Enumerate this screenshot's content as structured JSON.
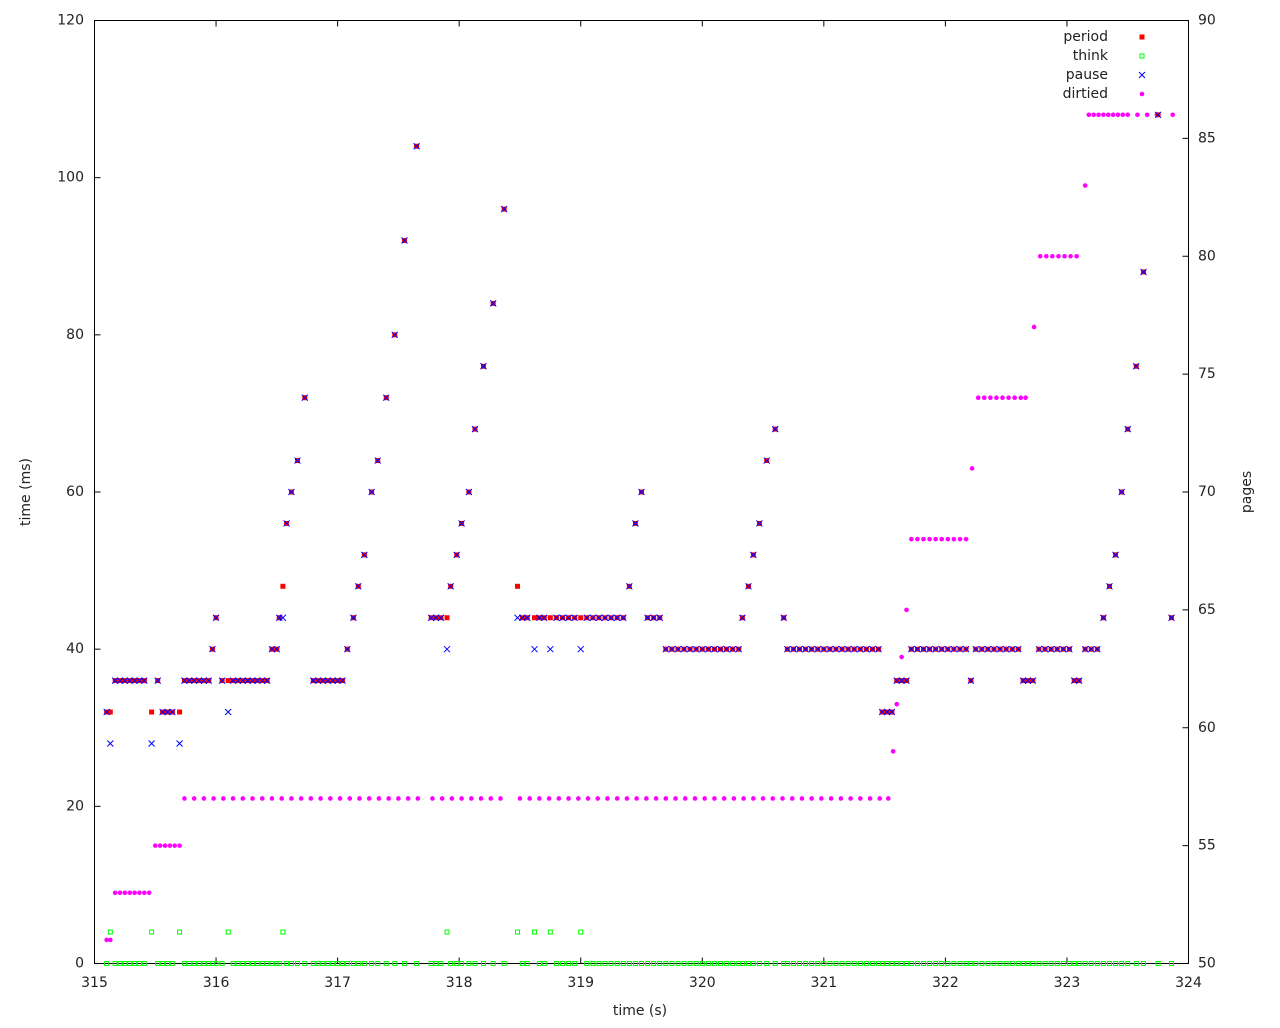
{
  "chart_data": {
    "type": "scatter",
    "xlabel": "time (s)",
    "ylabel": "time (ms)",
    "y2label": "pages",
    "xlim": [
      315,
      324
    ],
    "xticks": [
      315,
      316,
      317,
      318,
      319,
      320,
      321,
      322,
      323,
      324
    ],
    "ylim": [
      0,
      120
    ],
    "yticks": [
      0,
      20,
      40,
      60,
      80,
      100,
      120
    ],
    "y2lim": [
      50,
      90
    ],
    "y2ticks": [
      50,
      55,
      60,
      65,
      70,
      75,
      80,
      85,
      90
    ],
    "grid": false,
    "legend": "top-right",
    "x": [
      315.1,
      315.13,
      315.17,
      315.21,
      315.25,
      315.29,
      315.33,
      315.37,
      315.41,
      315.47,
      315.52,
      315.56,
      315.6,
      315.64,
      315.7,
      315.74,
      315.78,
      315.82,
      315.86,
      315.9,
      315.94,
      315.97,
      316.0,
      316.05,
      316.1,
      316.14,
      316.18,
      316.22,
      316.26,
      316.3,
      316.34,
      316.38,
      316.42,
      316.46,
      316.5,
      316.52,
      316.55,
      316.58,
      316.62,
      316.67,
      316.73,
      316.8,
      316.84,
      316.88,
      316.92,
      316.96,
      317.0,
      317.04,
      317.08,
      317.13,
      317.17,
      317.22,
      317.28,
      317.33,
      317.4,
      317.47,
      317.55,
      317.65,
      317.77,
      317.81,
      317.85,
      317.9,
      317.93,
      317.98,
      318.02,
      318.08,
      318.13,
      318.2,
      318.28,
      318.37,
      318.48,
      318.52,
      318.56,
      318.62,
      318.66,
      318.7,
      318.75,
      318.8,
      318.85,
      318.9,
      318.95,
      319.0,
      319.05,
      319.1,
      319.15,
      319.2,
      319.25,
      319.3,
      319.35,
      319.4,
      319.45,
      319.5,
      319.55,
      319.6,
      319.65,
      319.7,
      319.75,
      319.8,
      319.85,
      319.9,
      319.95,
      320.0,
      320.05,
      320.1,
      320.15,
      320.2,
      320.25,
      320.3,
      320.33,
      320.38,
      320.42,
      320.47,
      320.53,
      320.6,
      320.67,
      320.7,
      320.75,
      320.8,
      320.85,
      320.9,
      320.95,
      321.0,
      321.05,
      321.1,
      321.15,
      321.2,
      321.25,
      321.3,
      321.35,
      321.4,
      321.45,
      321.48,
      321.52,
      321.56,
      321.6,
      321.64,
      321.68,
      321.72,
      321.77,
      321.82,
      321.87,
      321.92,
      321.97,
      322.02,
      322.07,
      322.12,
      322.17,
      322.21,
      322.25,
      322.3,
      322.35,
      322.4,
      322.45,
      322.5,
      322.55,
      322.6,
      322.64,
      322.68,
      322.72,
      322.77,
      322.82,
      322.87,
      322.92,
      322.97,
      323.02,
      323.06,
      323.1,
      323.15,
      323.2,
      323.25,
      323.3,
      323.35,
      323.4,
      323.45,
      323.5,
      323.57,
      323.63,
      323.75,
      323.86
    ],
    "series": [
      {
        "name": "dirtied",
        "color": "#ff00ff",
        "marker": "circle",
        "axis": "y2",
        "x": [
          315.1,
          315.13,
          315.17,
          315.21,
          315.25,
          315.29,
          315.33,
          315.37,
          315.41,
          315.45,
          315.5,
          315.54,
          315.58,
          315.62,
          315.66,
          315.7,
          315.74,
          315.82,
          315.9,
          315.98,
          316.06,
          316.14,
          316.22,
          316.3,
          316.38,
          316.46,
          316.54,
          316.62,
          316.7,
          316.78,
          316.86,
          316.94,
          317.02,
          317.1,
          317.18,
          317.26,
          317.34,
          317.42,
          317.5,
          317.58,
          317.66,
          317.78,
          317.86,
          317.94,
          318.02,
          318.1,
          318.18,
          318.26,
          318.34,
          318.5,
          318.58,
          318.66,
          318.74,
          318.82,
          318.9,
          318.98,
          319.06,
          319.14,
          319.22,
          319.3,
          319.38,
          319.46,
          319.54,
          319.62,
          319.7,
          319.78,
          319.86,
          319.94,
          320.02,
          320.1,
          320.18,
          320.26,
          320.34,
          320.42,
          320.5,
          320.58,
          320.66,
          320.74,
          320.82,
          320.9,
          320.98,
          321.06,
          321.14,
          321.22,
          321.3,
          321.38,
          321.46,
          321.53,
          321.57,
          321.6,
          321.64,
          321.68,
          321.72,
          321.77,
          321.82,
          321.87,
          321.92,
          321.97,
          322.02,
          322.07,
          322.12,
          322.17,
          322.22,
          322.27,
          322.32,
          322.37,
          322.42,
          322.47,
          322.52,
          322.57,
          322.62,
          322.66,
          322.73,
          322.78,
          322.83,
          322.88,
          322.93,
          322.98,
          323.03,
          323.08,
          323.15,
          323.18,
          323.22,
          323.26,
          323.3,
          323.34,
          323.38,
          323.42,
          323.46,
          323.5,
          323.58,
          323.66,
          323.74,
          323.87
        ],
        "values": [
          51,
          51,
          53,
          53,
          53,
          53,
          53,
          53,
          53,
          53,
          55,
          55,
          55,
          55,
          55,
          55,
          57,
          57,
          57,
          57,
          57,
          57,
          57,
          57,
          57,
          57,
          57,
          57,
          57,
          57,
          57,
          57,
          57,
          57,
          57,
          57,
          57,
          57,
          57,
          57,
          57,
          57,
          57,
          57,
          57,
          57,
          57,
          57,
          57,
          57,
          57,
          57,
          57,
          57,
          57,
          57,
          57,
          57,
          57,
          57,
          57,
          57,
          57,
          57,
          57,
          57,
          57,
          57,
          57,
          57,
          57,
          57,
          57,
          57,
          57,
          57,
          57,
          57,
          57,
          57,
          57,
          57,
          57,
          57,
          57,
          57,
          57,
          57,
          59,
          61,
          63,
          65,
          68,
          68,
          68,
          68,
          68,
          68,
          68,
          68,
          68,
          68,
          71,
          74,
          74,
          74,
          74,
          74,
          74,
          74,
          74,
          74,
          77,
          80,
          80,
          80,
          80,
          80,
          80,
          80,
          83,
          86,
          86,
          86,
          86,
          86,
          86,
          86,
          86,
          86,
          86,
          86,
          86,
          86
        ]
      },
      {
        "name": "think",
        "color": "#00ff00",
        "marker": "open-square",
        "values": [
          0,
          4,
          0,
          0,
          0,
          0,
          0,
          0,
          0,
          4,
          0,
          0,
          0,
          0,
          4,
          0,
          0,
          0,
          0,
          0,
          0,
          0,
          0,
          0,
          4,
          0,
          0,
          0,
          0,
          0,
          0,
          0,
          0,
          0,
          0,
          0,
          4,
          0,
          0,
          0,
          0,
          0,
          0,
          0,
          0,
          0,
          0,
          0,
          0,
          0,
          0,
          0,
          0,
          0,
          0,
          0,
          0,
          0,
          0,
          0,
          0,
          4,
          0,
          0,
          0,
          0,
          0,
          0,
          0,
          0,
          4,
          0,
          0,
          4,
          0,
          0,
          4,
          0,
          0,
          0,
          0,
          4,
          0,
          0,
          0,
          0,
          0,
          0,
          0,
          0,
          0,
          0,
          0,
          0,
          0,
          0,
          0,
          0,
          0,
          0,
          0,
          0,
          0,
          0,
          0,
          0,
          0,
          0,
          0,
          0,
          0,
          0,
          0,
          0,
          0,
          0,
          0,
          0,
          0,
          0,
          0,
          0,
          0,
          0,
          0,
          0,
          0,
          0,
          0,
          0,
          0,
          0,
          0,
          0,
          0,
          0,
          0,
          0,
          0,
          0,
          0,
          0,
          0,
          0,
          0,
          0,
          0,
          0,
          0,
          0,
          0,
          0,
          0,
          0,
          0,
          0,
          0,
          0,
          0,
          0,
          0,
          0,
          0,
          0,
          0,
          0,
          0,
          0,
          0,
          0,
          0,
          0,
          0,
          0,
          0,
          0,
          0,
          0,
          0
        ]
      },
      {
        "name": "period",
        "color": "#ff0000",
        "marker": "square",
        "values": [
          32,
          32,
          36,
          36,
          36,
          36,
          36,
          36,
          36,
          32,
          36,
          32,
          32,
          32,
          32,
          36,
          36,
          36,
          36,
          36,
          36,
          40,
          44,
          36,
          36,
          36,
          36,
          36,
          36,
          36,
          36,
          36,
          36,
          40,
          40,
          44,
          48,
          56,
          60,
          64,
          72,
          36,
          36,
          36,
          36,
          36,
          36,
          36,
          40,
          44,
          48,
          52,
          60,
          64,
          72,
          80,
          92,
          104,
          44,
          44,
          44,
          44,
          48,
          52,
          56,
          60,
          68,
          76,
          84,
          96,
          48,
          44,
          44,
          44,
          44,
          44,
          44,
          44,
          44,
          44,
          44,
          44,
          44,
          44,
          44,
          44,
          44,
          44,
          44,
          48,
          56,
          60,
          44,
          44,
          44,
          40,
          40,
          40,
          40,
          40,
          40,
          40,
          40,
          40,
          40,
          40,
          40,
          40,
          44,
          48,
          52,
          56,
          64,
          68,
          44,
          40,
          40,
          40,
          40,
          40,
          40,
          40,
          40,
          40,
          40,
          40,
          40,
          40,
          40,
          40,
          40,
          32,
          32,
          32,
          36,
          36,
          36,
          40,
          40,
          40,
          40,
          40,
          40,
          40,
          40,
          40,
          40,
          36,
          40,
          40,
          40,
          40,
          40,
          40,
          40,
          40,
          36,
          36,
          36,
          40,
          40,
          40,
          40,
          40,
          40,
          36,
          36,
          40,
          40,
          40,
          44,
          48,
          52,
          60,
          68,
          76,
          88,
          108,
          44
        ]
      },
      {
        "name": "pause",
        "color": "#0000ff",
        "marker": "cross",
        "values": [
          32,
          28,
          36,
          36,
          36,
          36,
          36,
          36,
          36,
          28,
          36,
          32,
          32,
          32,
          28,
          36,
          36,
          36,
          36,
          36,
          36,
          40,
          44,
          36,
          32,
          36,
          36,
          36,
          36,
          36,
          36,
          36,
          36,
          40,
          40,
          44,
          44,
          56,
          60,
          64,
          72,
          36,
          36,
          36,
          36,
          36,
          36,
          36,
          40,
          44,
          48,
          52,
          60,
          64,
          72,
          80,
          92,
          104,
          44,
          44,
          44,
          40,
          48,
          52,
          56,
          60,
          68,
          76,
          84,
          96,
          44,
          44,
          44,
          40,
          44,
          44,
          40,
          44,
          44,
          44,
          44,
          40,
          44,
          44,
          44,
          44,
          44,
          44,
          44,
          48,
          56,
          60,
          44,
          44,
          44,
          40,
          40,
          40,
          40,
          40,
          40,
          40,
          40,
          40,
          40,
          40,
          40,
          40,
          44,
          48,
          52,
          56,
          64,
          68,
          44,
          40,
          40,
          40,
          40,
          40,
          40,
          40,
          40,
          40,
          40,
          40,
          40,
          40,
          40,
          40,
          40,
          32,
          32,
          32,
          36,
          36,
          36,
          40,
          40,
          40,
          40,
          40,
          40,
          40,
          40,
          40,
          40,
          36,
          40,
          40,
          40,
          40,
          40,
          40,
          40,
          40,
          36,
          36,
          36,
          40,
          40,
          40,
          40,
          40,
          40,
          36,
          36,
          40,
          40,
          40,
          44,
          48,
          52,
          60,
          68,
          76,
          88,
          108,
          44
        ]
      }
    ]
  }
}
